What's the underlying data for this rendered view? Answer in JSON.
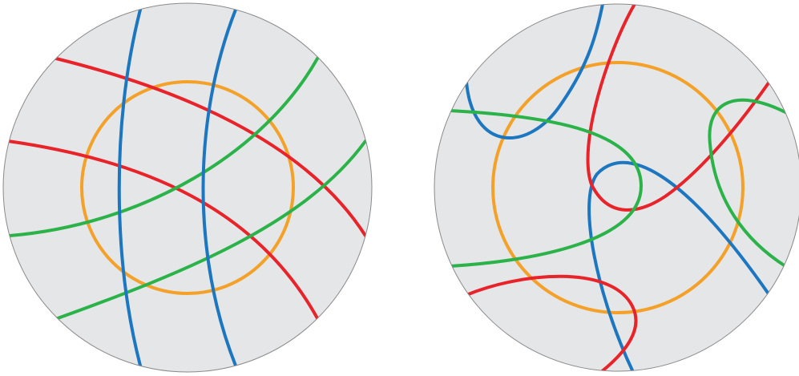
{
  "colors": {
    "disk_fill": "#e5e6e8",
    "disk_stroke": "#8a8a8a",
    "red": "#e8232a",
    "blue": "#1d76c0",
    "green": "#2bb34a",
    "orange": "#f4a12a",
    "background": "#ffffff"
  },
  "panels": [
    {
      "name": "left-disk"
    },
    {
      "name": "right-disk"
    }
  ]
}
